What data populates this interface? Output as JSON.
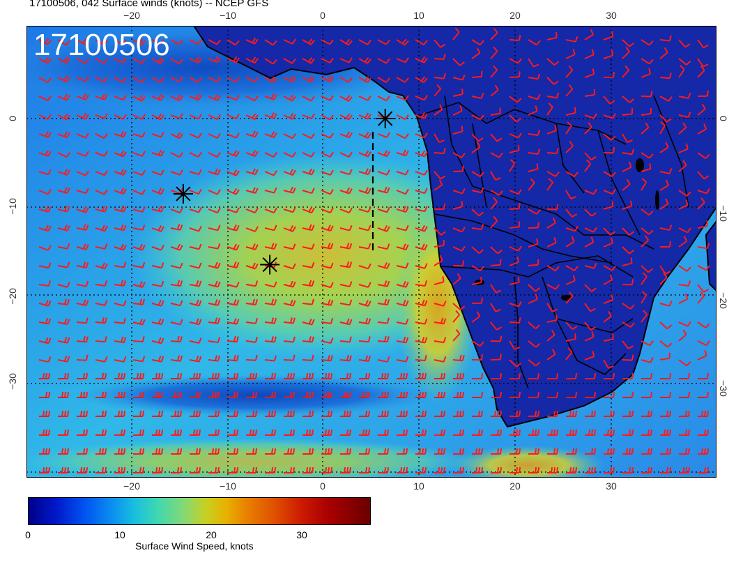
{
  "title": "17100506, 042 Surface winds (knots) -- NCEP GFS",
  "timestamp_label": "17100506",
  "map": {
    "lon_ticks": [
      "−20",
      "−10",
      "0",
      "10",
      "20",
      "30"
    ],
    "lat_ticks": [
      "0",
      "−10",
      "−20",
      "−30"
    ],
    "grid_lines": "dotted"
  },
  "storm_markers": [
    {
      "name": "marker-1",
      "lon": -14.5,
      "lat": -8.5
    },
    {
      "name": "marker-2",
      "lon": -5.5,
      "lat": -16.5
    },
    {
      "name": "marker-3",
      "lon": 6.5,
      "lat": 0
    }
  ],
  "colorbar": {
    "label": "Surface Wind Speed, knots",
    "ticks": [
      "0",
      "10",
      "20",
      "30"
    ],
    "min": 0,
    "max": 38
  },
  "colors": {
    "barbs": "#ff1a1a",
    "land": "#1020a0",
    "coast": "#000000",
    "stamp_text": "#ffffff"
  }
}
